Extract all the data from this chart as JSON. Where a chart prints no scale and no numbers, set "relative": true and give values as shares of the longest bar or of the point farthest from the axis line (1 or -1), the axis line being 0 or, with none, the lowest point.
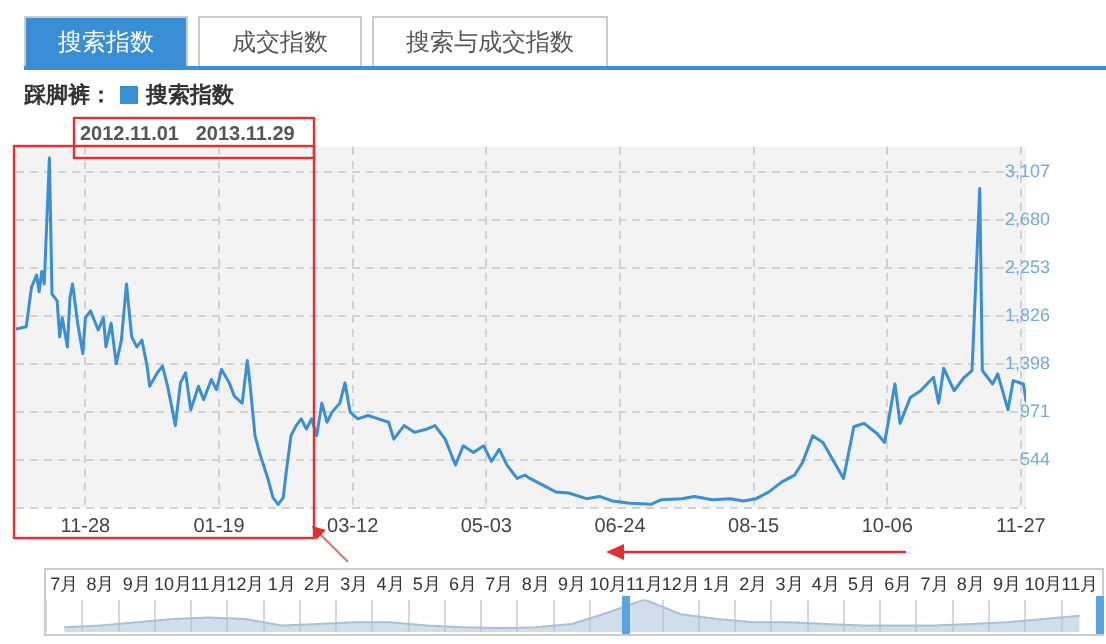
{
  "chart_data": [
    {
      "type": "line",
      "annotations": [
        "搜索指数",
        "成交指数",
        "搜索与成交指数",
        "2012.11.01   2013.11.29"
      ],
      "legend_title": "踩脚裤：",
      "legend": "top left",
      "grid": true,
      "marker": "none",
      "x": [
        "2012-11-01",
        "2012-11-05",
        "2012-11-07",
        "2012-11-09",
        "2012-11-10",
        "2012-11-11",
        "2012-11-12",
        "2012-11-14",
        "2012-11-15",
        "2012-11-17",
        "2012-11-18",
        "2012-11-19",
        "2012-11-21",
        "2012-11-22",
        "2012-11-23",
        "2012-11-25",
        "2012-11-27",
        "2012-11-28",
        "2012-11-30",
        "2012-12-03",
        "2012-12-05",
        "2012-12-06",
        "2012-12-08",
        "2012-12-10",
        "2012-12-12",
        "2012-12-14",
        "2012-12-16",
        "2012-12-18",
        "2012-12-20",
        "2012-12-22",
        "2012-12-23",
        "2012-12-26",
        "2012-12-28",
        "2012-12-30",
        "2013-01-01",
        "2013-01-02",
        "2013-01-04",
        "2013-01-06",
        "2013-01-08",
        "2013-01-11",
        "2013-01-13",
        "2013-01-16",
        "2013-01-18",
        "2013-01-20",
        "2013-01-23",
        "2013-01-25",
        "2013-01-28",
        "2013-01-30",
        "2013-01-31",
        "2013-02-02",
        "2013-02-04",
        "2013-02-07",
        "2013-02-09",
        "2013-02-11",
        "2013-02-13",
        "2013-02-14",
        "2013-02-16",
        "2013-02-18",
        "2013-02-20",
        "2013-02-22",
        "2013-02-24",
        "2013-02-26",
        "2013-02-28",
        "2013-03-02",
        "2013-03-04",
        "2013-03-07",
        "2013-03-09",
        "2013-03-11",
        "2013-03-14",
        "2013-03-18",
        "2013-03-22",
        "2013-03-26",
        "2013-03-28",
        "2013-04-01",
        "2013-04-05",
        "2013-04-10",
        "2013-04-13",
        "2013-04-17",
        "2013-04-21",
        "2013-04-24",
        "2013-04-28",
        "2013-05-02",
        "2013-05-05",
        "2013-05-08",
        "2013-05-11",
        "2013-05-15",
        "2013-05-18",
        "2013-05-20",
        "2013-05-25",
        "2013-05-30",
        "2013-06-04",
        "2013-06-11",
        "2013-06-16",
        "2013-06-21",
        "2013-06-28",
        "2013-07-06",
        "2013-07-10",
        "2013-07-18",
        "2013-07-23",
        "2013-07-30",
        "2013-08-06",
        "2013-08-11",
        "2013-08-16",
        "2013-08-21",
        "2013-08-26",
        "2013-08-31",
        "2013-09-03",
        "2013-09-07",
        "2013-09-11",
        "2013-09-14",
        "2013-09-19",
        "2013-09-23",
        "2013-09-27",
        "2013-10-02",
        "2013-10-05",
        "2013-10-09",
        "2013-10-11",
        "2013-10-15",
        "2013-10-19",
        "2013-10-24",
        "2013-10-26",
        "2013-10-28",
        "2013-11-01",
        "2013-11-05",
        "2013-11-08",
        "2013-11-11",
        "2013-11-12",
        "2013-11-16",
        "2013-11-18",
        "2013-11-22",
        "2013-11-24",
        "2013-11-28",
        "2013-11-29"
      ],
      "series": [
        {
          "name": "搜索指数",
          "color": "#3a8ed6",
          "values": [
            1710,
            1730,
            2080,
            2190,
            2040,
            2220,
            2110,
            3230,
            2020,
            1960,
            1640,
            1810,
            1550,
            1990,
            2110,
            1760,
            1490,
            1810,
            1870,
            1700,
            1810,
            1550,
            1760,
            1400,
            1610,
            2110,
            1640,
            1550,
            1610,
            1380,
            1200,
            1320,
            1380,
            1200,
            970,
            850,
            1230,
            1320,
            990,
            1200,
            1080,
            1260,
            1170,
            1350,
            1230,
            1110,
            1050,
            1430,
            1230,
            760,
            590,
            380,
            210,
            150,
            210,
            410,
            760,
            850,
            910,
            820,
            910,
            760,
            1050,
            880,
            970,
            1050,
            1230,
            970,
            910,
            940,
            910,
            880,
            730,
            850,
            790,
            820,
            850,
            730,
            500,
            670,
            610,
            670,
            530,
            640,
            500,
            380,
            410,
            380,
            320,
            260,
            250,
            200,
            220,
            180,
            160,
            150,
            190,
            200,
            220,
            190,
            200,
            180,
            200,
            260,
            350,
            410,
            520,
            760,
            700,
            580,
            380,
            840,
            870,
            780,
            700,
            1220,
            870,
            1100,
            1160,
            1280,
            1050,
            1360,
            1160,
            1280,
            1340,
            2960,
            1340,
            1220,
            1310,
            990,
            1250,
            1220,
            1070
          ]
        }
      ],
      "xlim": [
        "2012-11-01",
        "2013-11-29"
      ],
      "xticks": [
        {
          "value": "2012-11-28",
          "label": "11-28"
        },
        {
          "value": "2013-01-19",
          "label": "01-19"
        },
        {
          "value": "2013-03-12",
          "label": "03-12"
        },
        {
          "value": "2013-05-03",
          "label": "05-03"
        },
        {
          "value": "2013-06-24",
          "label": "06-24"
        },
        {
          "value": "2013-08-15",
          "label": "08-15"
        },
        {
          "value": "2013-10-06",
          "label": "10-06"
        },
        {
          "value": "2013-11-27",
          "label": "11-27"
        }
      ],
      "ylim": [
        117,
        3330
      ],
      "yticks": [
        {
          "value": 117,
          "label": null
        },
        {
          "value": 544,
          "label": "544"
        },
        {
          "value": 971,
          "label": "971"
        },
        {
          "value": 1398,
          "label": "1,398"
        },
        {
          "value": 1826,
          "label": "1,826"
        },
        {
          "value": 2253,
          "label": "2,253"
        },
        {
          "value": 2680,
          "label": "2,680"
        },
        {
          "value": 3107,
          "label": "3,107"
        }
      ]
    },
    {
      "type": "area",
      "relative": true,
      "grid": "x",
      "color": "#a9c1d6",
      "categories": [
        "7月",
        "8月",
        "9月",
        "10月",
        "11月",
        "12月",
        "1月",
        "2月",
        "3月",
        "4月",
        "5月",
        "6月",
        "7月",
        "8月",
        "9月",
        "10月",
        "11月",
        "12月",
        "1月",
        "2月",
        "3月",
        "4月",
        "5月",
        "6月",
        "7月",
        "8月",
        "9月",
        "10月",
        "11月"
      ],
      "values": [
        0.15,
        0.2,
        0.3,
        0.4,
        0.45,
        0.4,
        0.2,
        0.25,
        0.3,
        0.3,
        0.2,
        0.15,
        0.12,
        0.15,
        0.25,
        0.6,
        1,
        0.55,
        0.4,
        0.3,
        0.3,
        0.25,
        0.2,
        0.2,
        0.2,
        0.25,
        0.3,
        0.4,
        0.5
      ]
    }
  ]
}
